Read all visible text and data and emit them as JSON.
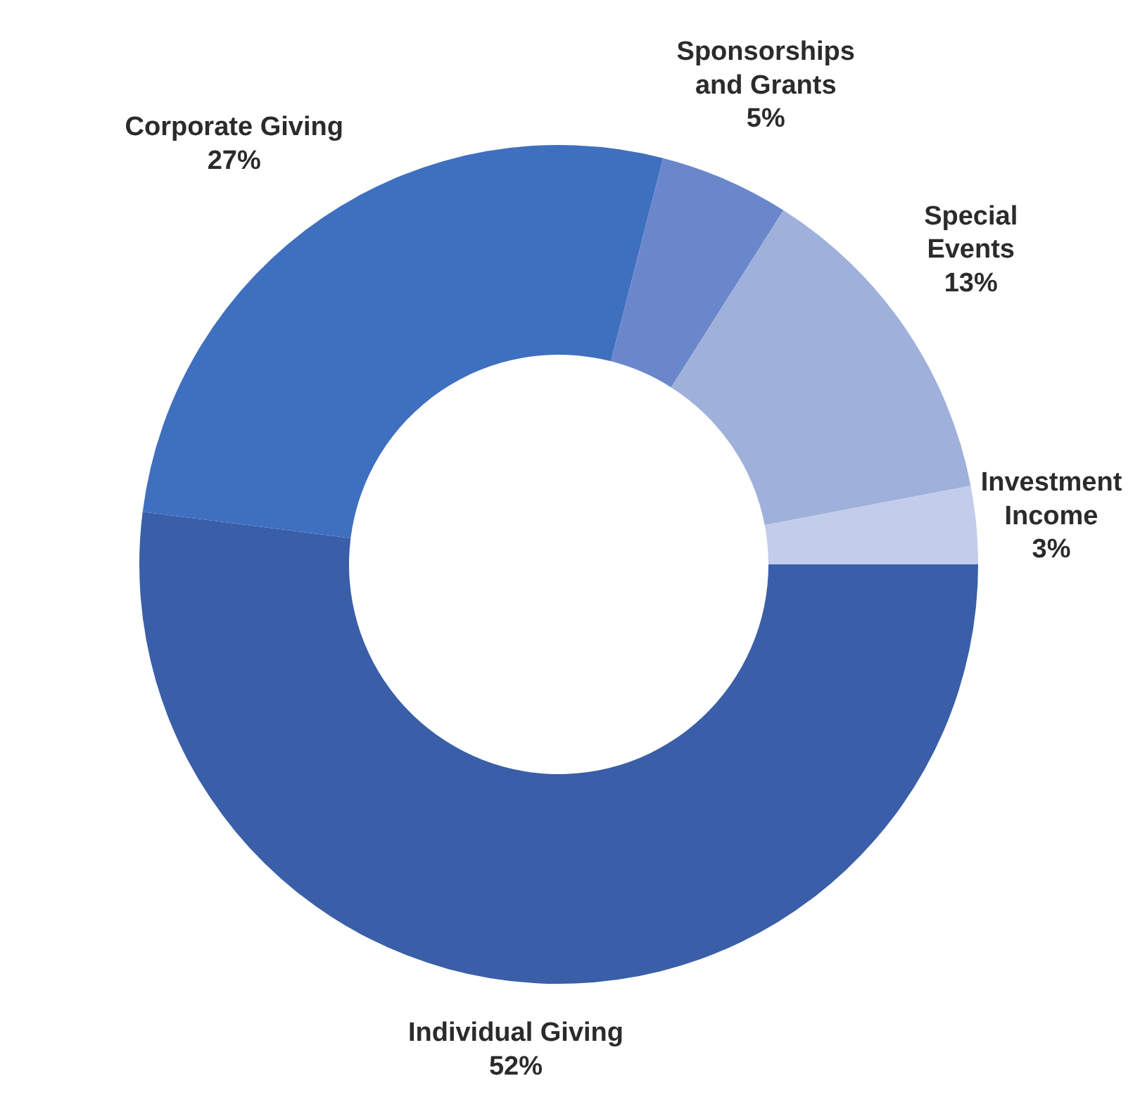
{
  "chart_data": {
    "type": "donut",
    "categories": [
      "Individual Giving",
      "Corporate Giving",
      "Sponsorships and Grants",
      "Special Events",
      "Investment Income"
    ],
    "values": [
      52,
      27,
      5,
      13,
      3
    ],
    "value_labels": [
      "52%",
      "27%",
      "5%",
      "13%",
      "3%"
    ],
    "colors": [
      "#3a5fa8",
      "#3f6fbf",
      "#6b87cc",
      "#9fb0db",
      "#c3cde9"
    ],
    "legend": false
  }
}
